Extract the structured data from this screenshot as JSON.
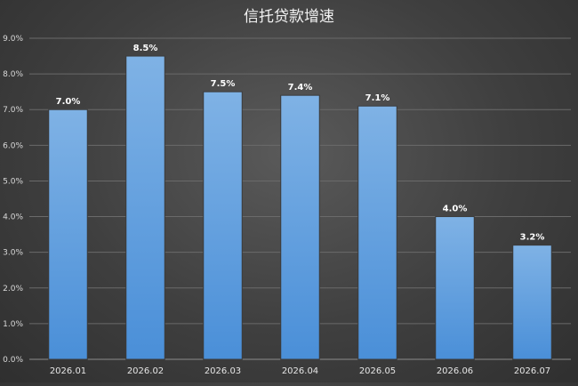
{
  "chart_data": {
    "type": "bar",
    "title": "信托贷款增速",
    "categories": [
      "2026.01",
      "2026.02",
      "2026.03",
      "2026.04",
      "2026.05",
      "2026.06",
      "2026.07"
    ],
    "values": [
      7.0,
      8.5,
      7.5,
      7.4,
      7.1,
      4.0,
      3.2
    ],
    "data_labels": [
      "7.0%",
      "8.5%",
      "7.5%",
      "7.4%",
      "7.1%",
      "4.0%",
      "3.2%"
    ],
    "yticks": [
      "0.0%",
      "1.0%",
      "2.0%",
      "3.0%",
      "4.0%",
      "5.0%",
      "6.0%",
      "7.0%",
      "8.0%",
      "9.0%"
    ],
    "ylim": [
      0,
      9
    ],
    "xlabel": "",
    "ylabel": "",
    "grid": true,
    "legend": "none",
    "colors": {
      "bar_top": "#7fb2e5",
      "bar_bottom": "#4a8fd8",
      "background": "#444444"
    }
  }
}
